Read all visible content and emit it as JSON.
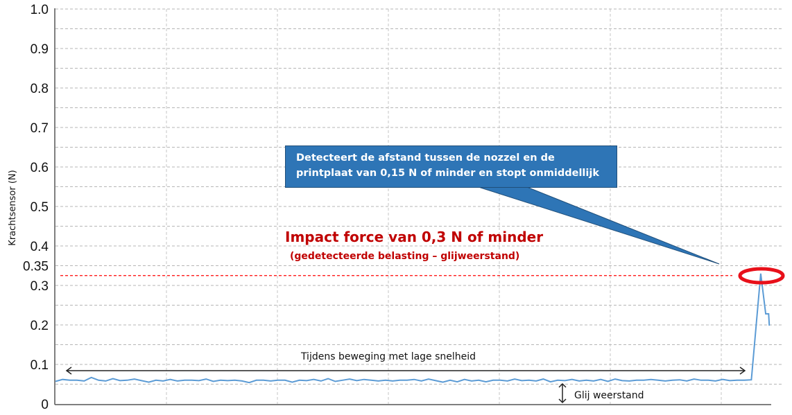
{
  "chart_data": {
    "type": "line",
    "ylabel": "Krachtsensor (N)",
    "ylim": [
      0,
      1.0
    ],
    "xlim": [
      0,
      101.5
    ],
    "yticks": [
      "0",
      "0.1",
      "0.2",
      "0.3",
      "0.35",
      "0.4",
      "0.5",
      "0.6",
      "0.7",
      "0.8",
      "0.9",
      "1.0"
    ],
    "ytick_values": [
      0,
      0.1,
      0.2,
      0.3,
      0.35,
      0.4,
      0.5,
      0.6,
      0.7,
      0.8,
      0.9,
      1.0
    ],
    "grid": true,
    "series": [
      {
        "color": "#5b9bd5",
        "x": [
          0,
          1,
          2,
          3,
          4,
          5,
          6,
          7,
          8,
          9,
          10,
          11,
          12,
          13,
          14,
          15,
          16,
          17,
          18,
          19,
          20,
          21,
          22,
          23,
          24,
          25,
          26,
          27,
          28,
          29,
          30,
          31,
          32,
          33,
          34,
          35,
          36,
          37,
          38,
          39,
          40,
          41,
          42,
          43,
          44,
          45,
          46,
          47,
          48,
          49,
          50,
          51,
          52,
          53,
          54,
          55,
          56,
          57,
          58,
          59,
          60,
          61,
          62,
          63,
          64,
          65,
          66,
          67,
          68,
          69,
          70,
          71,
          72,
          73,
          74,
          75,
          76,
          77,
          78,
          79,
          80,
          81,
          82,
          83,
          84,
          85,
          86,
          87,
          88,
          89,
          90,
          91,
          92,
          93,
          94,
          95,
          96,
          97,
          98.3,
          99,
          99.4,
          99.5
        ],
        "y": [
          0.057,
          0.062,
          0.06,
          0.06,
          0.058,
          0.067,
          0.06,
          0.058,
          0.064,
          0.059,
          0.06,
          0.063,
          0.059,
          0.055,
          0.06,
          0.058,
          0.062,
          0.058,
          0.06,
          0.06,
          0.059,
          0.063,
          0.057,
          0.06,
          0.059,
          0.06,
          0.058,
          0.054,
          0.06,
          0.06,
          0.058,
          0.06,
          0.06,
          0.055,
          0.06,
          0.059,
          0.062,
          0.058,
          0.064,
          0.057,
          0.06,
          0.063,
          0.059,
          0.062,
          0.06,
          0.058,
          0.06,
          0.058,
          0.06,
          0.06,
          0.062,
          0.058,
          0.063,
          0.059,
          0.055,
          0.06,
          0.056,
          0.062,
          0.058,
          0.06,
          0.056,
          0.06,
          0.06,
          0.058,
          0.063,
          0.059,
          0.06,
          0.058,
          0.063,
          0.056,
          0.06,
          0.059,
          0.062,
          0.058,
          0.06,
          0.058,
          0.062,
          0.057,
          0.063,
          0.059,
          0.058,
          0.06,
          0.06,
          0.062,
          0.06,
          0.058,
          0.06,
          0.061,
          0.058,
          0.063,
          0.06,
          0.06,
          0.058,
          0.062,
          0.059,
          0.06,
          0.06,
          0.061,
          0.33,
          0.228,
          0.228,
          0.198
        ]
      }
    ],
    "threshold_line": {
      "value": 0.325,
      "color": "#ff0000"
    },
    "annotations": {
      "callout": "Detecteert de afstand tussen de nozzel en de printplaat van 0,15 N of minder en stopt onmiddellijk",
      "impact_title": "Impact force van 0,3 N of minder",
      "impact_subtitle": "(gedetecteerde belasting – glijweerstand)",
      "low_speed": "Tijdens beweging met lage snelheid",
      "friction": "Glij weerstand"
    },
    "colors": {
      "callout": "#2e75b6",
      "impact_text": "#c00000",
      "peak_marker": "#e8101a"
    }
  }
}
